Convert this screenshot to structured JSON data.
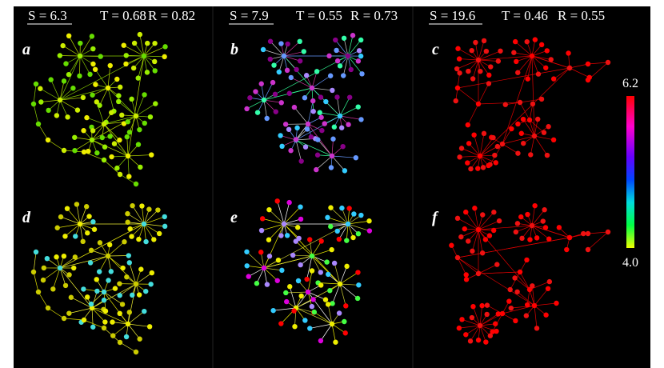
{
  "columns": [
    {
      "S": "S = 6.3",
      "T": "T = 0.68",
      "R": "R = 0.82"
    },
    {
      "S": "S = 7.9",
      "T": "T = 0.55",
      "R": "R = 0.73"
    },
    {
      "S": "S = 19.6",
      "T": "T = 0.46",
      "R": "R = 0.55"
    }
  ],
  "panels": [
    "a",
    "b",
    "c",
    "d",
    "e",
    "f"
  ],
  "colorbar": {
    "max": "6.2",
    "min": "4.0"
  }
}
